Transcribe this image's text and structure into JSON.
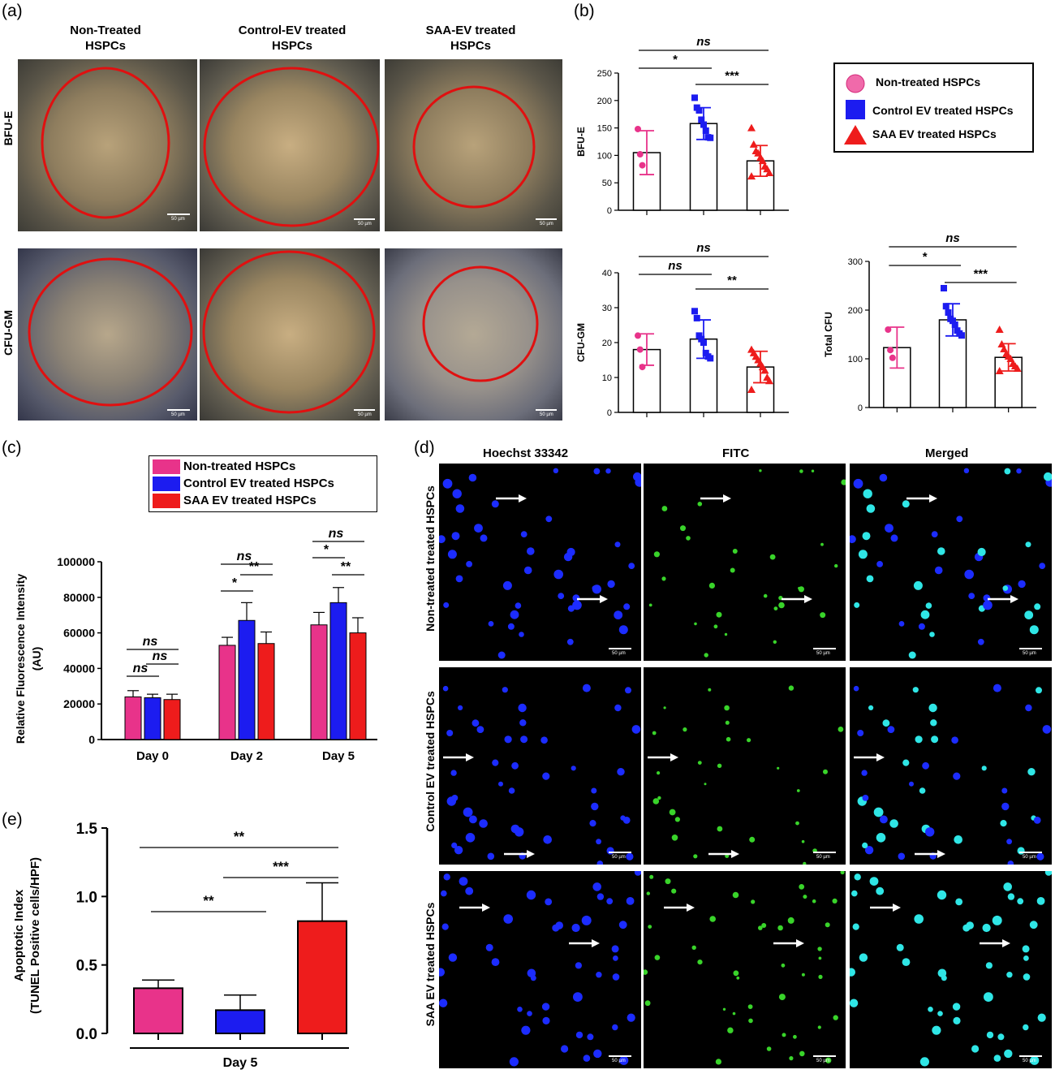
{
  "panels": {
    "a": {
      "letter": "(a)",
      "columns": [
        "Non-Treated\nHSPCs",
        "Control-EV treated\nHSPCs",
        "SAA-EV treated\nHSPCs"
      ],
      "rows": [
        "BFU-E",
        "CFU-GM"
      ],
      "scalebar": "50 µm"
    },
    "b": {
      "letter": "(b)"
    },
    "c": {
      "letter": "(c)"
    },
    "d": {
      "letter": "(d)",
      "columns": [
        "Hoechst 33342",
        "FITC",
        "Merged"
      ],
      "rows": [
        "Non-treated  treated HSPCs",
        "Control EV treated HSPCs",
        "SAA EV treated  HSPCs"
      ],
      "scalebar": "50 µm"
    },
    "e": {
      "letter": "(e)"
    }
  },
  "legend_b": [
    "Non-treated HSPCs",
    "Control EV treated HSPCs",
    "SAA EV treated HSPCs"
  ],
  "legend_c": [
    "Non-treated HSPCs",
    "Control EV treated HSPCs",
    "SAA EV treated HSPCs"
  ],
  "colors": {
    "pink": "#e8338a",
    "blue": "#1c1cf0",
    "red": "#ee1c1c",
    "micro_circle": "#e01010"
  },
  "chart_data": [
    {
      "id": "bfu-e",
      "type": "bar",
      "categories": [
        "Non-treated HSPCs",
        "Control EV treated HSPCs",
        "SAA EV treated HSPCs"
      ],
      "values": [
        105,
        158,
        90
      ],
      "errors": [
        40,
        29,
        28
      ],
      "points": [
        [
          148,
          102,
          82
        ],
        [
          205,
          187,
          182,
          165,
          156,
          145,
          133,
          132
        ],
        [
          150,
          120,
          108,
          104,
          96,
          90,
          80,
          75,
          68,
          62
        ]
      ],
      "ylabel": "BFU-E",
      "ylim": [
        0,
        250
      ],
      "yticks": [
        0,
        50,
        100,
        150,
        200,
        250
      ],
      "significance": [
        [
          "ns",
          0,
          2
        ],
        [
          "*",
          0,
          1
        ],
        [
          "***",
          1,
          2
        ]
      ]
    },
    {
      "id": "cfu-gm",
      "type": "bar",
      "categories": [
        "Non-treated HSPCs",
        "Control EV treated HSPCs",
        "SAA EV treated HSPCs"
      ],
      "values": [
        18,
        21,
        13
      ],
      "errors": [
        4.5,
        5.5,
        4.5
      ],
      "points": [
        [
          22,
          18,
          13
        ],
        [
          29,
          27,
          22,
          21,
          20,
          17,
          16,
          15.5
        ],
        [
          18,
          17,
          16,
          15,
          14,
          13,
          12,
          10,
          9,
          6.5
        ]
      ],
      "ylabel": "CFU-GM",
      "ylim": [
        0,
        40
      ],
      "yticks": [
        0,
        10,
        20,
        30,
        40
      ],
      "significance": [
        [
          "ns",
          0,
          2
        ],
        [
          "ns",
          0,
          1
        ],
        [
          "**",
          1,
          2
        ]
      ]
    },
    {
      "id": "total-cfu",
      "type": "bar",
      "categories": [
        "Non-treated HSPCs",
        "Control EV treated HSPCs",
        "SAA EV treated HSPCs"
      ],
      "values": [
        123,
        180,
        103
      ],
      "errors": [
        42,
        33,
        28
      ],
      "points": [
        [
          160,
          118,
          102
        ],
        [
          245,
          208,
          195,
          182,
          178,
          170,
          158,
          152,
          148
        ],
        [
          160,
          130,
          120,
          110,
          105,
          100,
          90,
          85,
          80,
          75
        ]
      ],
      "ylabel": "Total CFU",
      "ylim": [
        0,
        300
      ],
      "yticks": [
        0,
        100,
        200,
        300
      ],
      "significance": [
        [
          "ns",
          0,
          2
        ],
        [
          "*",
          0,
          1
        ],
        [
          "***",
          1,
          2
        ]
      ]
    },
    {
      "id": "fluorescence",
      "type": "bar",
      "categories": [
        "Day 0",
        "Day 2",
        "Day 5"
      ],
      "series": [
        {
          "name": "Non-treated HSPCs",
          "values": [
            24000,
            53000,
            64500
          ],
          "errors": [
            3500,
            4500,
            7000
          ]
        },
        {
          "name": "Control EV treated HSPCs",
          "values": [
            23500,
            67000,
            77000
          ],
          "errors": [
            2000,
            10000,
            8500
          ]
        },
        {
          "name": "SAA EV treated HSPCs",
          "values": [
            22500,
            54000,
            60000
          ],
          "errors": [
            3000,
            6500,
            8500
          ]
        }
      ],
      "ylabel": "Relative Fluorescence Intensity\n(AU)",
      "ylim": [
        0,
        100000
      ],
      "yticks": [
        0,
        20000,
        40000,
        60000,
        80000,
        100000
      ],
      "significance": [
        [
          "ns",
          0,
          0,
          2
        ],
        [
          "ns",
          0,
          1,
          2
        ],
        [
          "ns",
          0,
          0,
          1
        ],
        [
          "ns",
          1,
          0,
          2
        ],
        [
          "*",
          1,
          0,
          1
        ],
        [
          "**",
          1,
          1,
          2
        ],
        [
          "ns",
          2,
          0,
          2
        ],
        [
          "*",
          2,
          0,
          1
        ],
        [
          "**",
          2,
          1,
          2
        ]
      ]
    },
    {
      "id": "apoptotic",
      "type": "bar",
      "categories": [
        "Non-treated HSPCs",
        "Control EV treated HSPCs",
        "SAA EV treated HSPCs"
      ],
      "values": [
        0.33,
        0.17,
        0.82
      ],
      "errors": [
        0.06,
        0.11,
        0.28
      ],
      "xlabel": "Day 5",
      "ylabel": "Apoptotic Index\n(TUNEL Positive cells/HPF)",
      "ylim": [
        0,
        1.5
      ],
      "yticks": [
        "0.0",
        "0.5",
        "1.0",
        "1.5"
      ],
      "significance": [
        [
          "**",
          0,
          2
        ],
        [
          "***",
          1,
          2
        ],
        [
          "**",
          0,
          1
        ]
      ]
    }
  ]
}
